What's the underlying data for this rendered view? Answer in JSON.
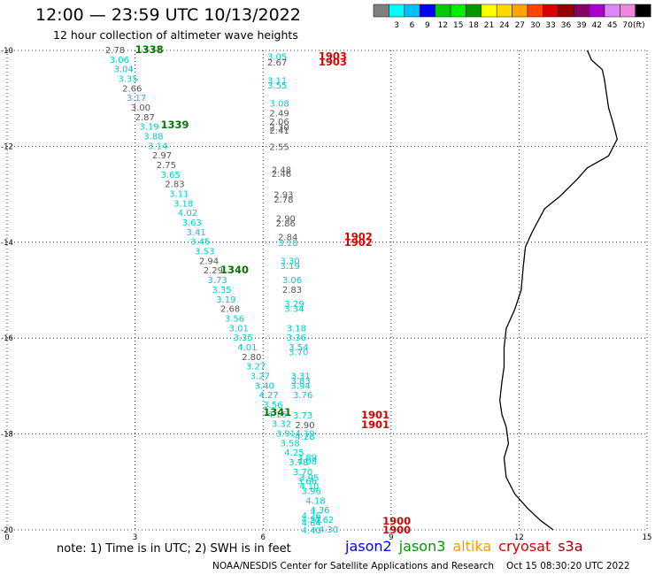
{
  "header": {
    "title": "12:00 — 23:59 UTC 10/13/2022",
    "subtitle": "12 hour collection of altimeter wave heights"
  },
  "colorbar": {
    "labels": [
      "3",
      "6",
      "9",
      "12",
      "15",
      "18",
      "21",
      "24",
      "27",
      "30",
      "33",
      "36",
      "39",
      "42",
      "45",
      "70"
    ],
    "unit": "(ft)",
    "colors": [
      "#808080",
      "#00ffff",
      "#00bfff",
      "#0000ff",
      "#00cc00",
      "#00ee00",
      "#009900",
      "#ffff00",
      "#ffd700",
      "#ffa500",
      "#ff4400",
      "#dd0000",
      "#990000",
      "#880066",
      "#aa00cc",
      "#dd88ff",
      "#ee88dd",
      "#000000"
    ]
  },
  "axes": {
    "y_ticks": [
      "-10",
      "-12",
      "-14",
      "-16",
      "-18",
      "-20"
    ],
    "x_ticks": [
      "0",
      "3",
      "6",
      "9",
      "12",
      "15"
    ]
  },
  "passes": [
    {
      "label": "1338",
      "color": "#007700",
      "x": 3.0,
      "y": -9.98
    },
    {
      "label": "1339",
      "color": "#007700",
      "x": 3.6,
      "y": -11.55
    },
    {
      "label": "1340",
      "color": "#007700",
      "x": 5.0,
      "y": -14.58
    },
    {
      "label": "1341",
      "color": "#007700",
      "x": 6.0,
      "y": -17.55
    },
    {
      "label": "1903",
      "color": "#dd0000",
      "x": 7.3,
      "y": -10.12
    },
    {
      "label": "1903",
      "color": "#dd0000",
      "x": 7.3,
      "y": -10.24
    },
    {
      "label": "1902",
      "color": "#dd0000",
      "x": 7.9,
      "y": -13.88
    },
    {
      "label": "1902",
      "color": "#dd0000",
      "x": 7.9,
      "y": -14.0
    },
    {
      "label": "1901",
      "color": "#dd0000",
      "x": 8.3,
      "y": -17.6
    },
    {
      "label": "1901",
      "color": "#dd0000",
      "x": 8.3,
      "y": -17.8
    },
    {
      "label": "1900",
      "color": "#dd0000",
      "x": 8.8,
      "y": -19.82
    },
    {
      "label": "1900",
      "color": "#dd0000",
      "x": 8.8,
      "y": -20.0
    }
  ],
  "observations": [
    {
      "v": "2.78",
      "c": "#555555",
      "x": 2.3,
      "y": -9.98
    },
    {
      "v": "3.06",
      "c": "#00cccc",
      "x": 2.4,
      "y": -10.18
    },
    {
      "v": "3.04",
      "c": "#00cccc",
      "x": 2.5,
      "y": -10.38
    },
    {
      "v": "3.35",
      "c": "#00cccc",
      "x": 2.6,
      "y": -10.58
    },
    {
      "v": "2.66",
      "c": "#555555",
      "x": 2.7,
      "y": -10.78
    },
    {
      "v": "3.17",
      "c": "#00cccc",
      "x": 2.8,
      "y": -10.98
    },
    {
      "v": "3.00",
      "c": "#555555",
      "x": 2.9,
      "y": -11.18
    },
    {
      "v": "2.87",
      "c": "#555555",
      "x": 3.0,
      "y": -11.38
    },
    {
      "v": "3.19",
      "c": "#00cccc",
      "x": 3.1,
      "y": -11.58
    },
    {
      "v": "3.88",
      "c": "#00cccc",
      "x": 3.2,
      "y": -11.78
    },
    {
      "v": "3.14",
      "c": "#00cccc",
      "x": 3.3,
      "y": -11.98
    },
    {
      "v": "2.97",
      "c": "#555555",
      "x": 3.4,
      "y": -12.18
    },
    {
      "v": "2.75",
      "c": "#555555",
      "x": 3.5,
      "y": -12.38
    },
    {
      "v": "3.65",
      "c": "#00cccc",
      "x": 3.6,
      "y": -12.58
    },
    {
      "v": "2.83",
      "c": "#555555",
      "x": 3.7,
      "y": -12.78
    },
    {
      "v": "3.11",
      "c": "#00cccc",
      "x": 3.8,
      "y": -12.98
    },
    {
      "v": "3.18",
      "c": "#00cccc",
      "x": 3.9,
      "y": -13.18
    },
    {
      "v": "4.02",
      "c": "#00cccc",
      "x": 4.0,
      "y": -13.38
    },
    {
      "v": "3.63",
      "c": "#00cccc",
      "x": 4.1,
      "y": -13.58
    },
    {
      "v": "3.41",
      "c": "#00cccc",
      "x": 4.2,
      "y": -13.78
    },
    {
      "v": "3.45",
      "c": "#00cccc",
      "x": 4.3,
      "y": -13.98
    },
    {
      "v": "3.53",
      "c": "#00cccc",
      "x": 4.4,
      "y": -14.18
    },
    {
      "v": "2.94",
      "c": "#555555",
      "x": 4.5,
      "y": -14.38
    },
    {
      "v": "2.29",
      "c": "#555555",
      "x": 4.6,
      "y": -14.58
    },
    {
      "v": "3.73",
      "c": "#00cccc",
      "x": 4.7,
      "y": -14.78
    },
    {
      "v": "3.35",
      "c": "#00cccc",
      "x": 4.8,
      "y": -14.98
    },
    {
      "v": "3.19",
      "c": "#00cccc",
      "x": 4.9,
      "y": -15.18
    },
    {
      "v": "2.68",
      "c": "#555555",
      "x": 5.0,
      "y": -15.38
    },
    {
      "v": "3.56",
      "c": "#00cccc",
      "x": 5.1,
      "y": -15.58
    },
    {
      "v": "3.01",
      "c": "#00cccc",
      "x": 5.2,
      "y": -15.78
    },
    {
      "v": "3.35",
      "c": "#00cccc",
      "x": 5.3,
      "y": -15.98
    },
    {
      "v": "4.01",
      "c": "#00cccc",
      "x": 5.4,
      "y": -16.18
    },
    {
      "v": "2.80",
      "c": "#555555",
      "x": 5.5,
      "y": -16.38
    },
    {
      "v": "3.27",
      "c": "#00cccc",
      "x": 5.6,
      "y": -16.58
    },
    {
      "v": "3.27",
      "c": "#00cccc",
      "x": 5.7,
      "y": -16.78
    },
    {
      "v": "3.40",
      "c": "#00cccc",
      "x": 5.8,
      "y": -16.98
    },
    {
      "v": "4.27",
      "c": "#00cccc",
      "x": 5.9,
      "y": -17.18
    },
    {
      "v": "3.56",
      "c": "#00cccc",
      "x": 6.0,
      "y": -17.38
    },
    {
      "v": "4.16",
      "c": "#00cccc",
      "x": 6.1,
      "y": -17.58
    },
    {
      "v": "3.32",
      "c": "#00cccc",
      "x": 6.2,
      "y": -17.78
    },
    {
      "v": "3.91",
      "c": "#00cccc",
      "x": 6.3,
      "y": -17.98
    },
    {
      "v": "3.58",
      "c": "#00cccc",
      "x": 6.4,
      "y": -18.18
    },
    {
      "v": "4.25",
      "c": "#00cccc",
      "x": 6.5,
      "y": -18.38
    },
    {
      "v": "3.78",
      "c": "#00cccc",
      "x": 6.6,
      "y": -18.58
    },
    {
      "v": "3.70",
      "c": "#00cccc",
      "x": 6.7,
      "y": -18.78
    },
    {
      "v": "3.66",
      "c": "#00cccc",
      "x": 6.8,
      "y": -18.98
    },
    {
      "v": "3.96",
      "c": "#00cccc",
      "x": 6.9,
      "y": -19.18
    },
    {
      "v": "4.18",
      "c": "#00cccc",
      "x": 7.0,
      "y": -19.38
    },
    {
      "v": "4.36",
      "c": "#00cccc",
      "x": 7.1,
      "y": -19.58
    },
    {
      "v": "4.62",
      "c": "#00cccc",
      "x": 7.2,
      "y": -19.78
    },
    {
      "v": "4.30",
      "c": "#00cccc",
      "x": 7.3,
      "y": -19.98
    },
    {
      "v": "3.05",
      "c": "#00cccc",
      "x": 6.1,
      "y": -10.12
    },
    {
      "v": "2.67",
      "c": "#555555",
      "x": 6.1,
      "y": -10.24
    },
    {
      "v": "3.11",
      "c": "#00cccc",
      "x": 6.1,
      "y": -10.62
    },
    {
      "v": "3.55",
      "c": "#00cccc",
      "x": 6.1,
      "y": -10.72
    },
    {
      "v": "3.08",
      "c": "#00cccc",
      "x": 6.15,
      "y": -11.1
    },
    {
      "v": "2.49",
      "c": "#555555",
      "x": 6.15,
      "y": -11.3
    },
    {
      "v": "2.06",
      "c": "#555555",
      "x": 6.15,
      "y": -11.48
    },
    {
      "v": "2.30",
      "c": "#555555",
      "x": 6.15,
      "y": -11.6
    },
    {
      "v": "2.41",
      "c": "#555555",
      "x": 6.15,
      "y": -11.66
    },
    {
      "v": "2.55",
      "c": "#555555",
      "x": 6.15,
      "y": -12.0
    },
    {
      "v": "2.48",
      "c": "#555555",
      "x": 6.2,
      "y": -12.48
    },
    {
      "v": "2.46",
      "c": "#555555",
      "x": 6.2,
      "y": -12.56
    },
    {
      "v": "2.93",
      "c": "#555555",
      "x": 6.25,
      "y": -13.0
    },
    {
      "v": "2.78",
      "c": "#555555",
      "x": 6.25,
      "y": -13.1
    },
    {
      "v": "2.90",
      "c": "#555555",
      "x": 6.3,
      "y": -13.5
    },
    {
      "v": "2.86",
      "c": "#555555",
      "x": 6.3,
      "y": -13.6
    },
    {
      "v": "2.84",
      "c": "#555555",
      "x": 6.35,
      "y": -13.88
    },
    {
      "v": "3.18",
      "c": "#00cccc",
      "x": 6.35,
      "y": -14.0
    },
    {
      "v": "3.30",
      "c": "#00cccc",
      "x": 6.4,
      "y": -14.38
    },
    {
      "v": "3.19",
      "c": "#00cccc",
      "x": 6.4,
      "y": -14.48
    },
    {
      "v": "3.06",
      "c": "#00cccc",
      "x": 6.45,
      "y": -14.78
    },
    {
      "v": "2.83",
      "c": "#555555",
      "x": 6.45,
      "y": -14.98
    },
    {
      "v": "3.29",
      "c": "#00cccc",
      "x": 6.5,
      "y": -15.28
    },
    {
      "v": "3.34",
      "c": "#00cccc",
      "x": 6.5,
      "y": -15.38
    },
    {
      "v": "3.18",
      "c": "#00cccc",
      "x": 6.55,
      "y": -15.78
    },
    {
      "v": "3.36",
      "c": "#00cccc",
      "x": 6.55,
      "y": -15.98
    },
    {
      "v": "3.54",
      "c": "#00cccc",
      "x": 6.6,
      "y": -16.18
    },
    {
      "v": "3.70",
      "c": "#00cccc",
      "x": 6.6,
      "y": -16.28
    },
    {
      "v": "3.31",
      "c": "#00cccc",
      "x": 6.65,
      "y": -16.78
    },
    {
      "v": "3.83",
      "c": "#00cccc",
      "x": 6.65,
      "y": -16.88
    },
    {
      "v": "3.94",
      "c": "#00cccc",
      "x": 6.65,
      "y": -16.98
    },
    {
      "v": "3.76",
      "c": "#00cccc",
      "x": 6.7,
      "y": -17.18
    },
    {
      "v": "3.73",
      "c": "#00cccc",
      "x": 6.7,
      "y": -17.6
    },
    {
      "v": "2.90",
      "c": "#555555",
      "x": 6.75,
      "y": -17.8
    },
    {
      "v": "4.19",
      "c": "#00cccc",
      "x": 6.75,
      "y": -17.98
    },
    {
      "v": "4.28",
      "c": "#00cccc",
      "x": 6.75,
      "y": -18.04
    },
    {
      "v": "3.89",
      "c": "#00cccc",
      "x": 6.8,
      "y": -18.48
    },
    {
      "v": "4.08",
      "c": "#00cccc",
      "x": 6.8,
      "y": -18.56
    },
    {
      "v": "3.95",
      "c": "#00cccc",
      "x": 6.85,
      "y": -18.9
    },
    {
      "v": "4.10",
      "c": "#00cccc",
      "x": 6.85,
      "y": -19.08
    },
    {
      "v": "4.26",
      "c": "#00cccc",
      "x": 6.9,
      "y": -19.7
    },
    {
      "v": "4.32",
      "c": "#00cccc",
      "x": 6.9,
      "y": -19.78
    },
    {
      "v": "4.64",
      "c": "#00cccc",
      "x": 6.9,
      "y": -19.84
    },
    {
      "v": "4.40",
      "c": "#00cccc",
      "x": 6.9,
      "y": -20.0
    }
  ],
  "coastline": [
    [
      13.6,
      -10.0
    ],
    [
      13.7,
      -10.2
    ],
    [
      13.95,
      -10.4
    ],
    [
      14.0,
      -10.6
    ],
    [
      14.05,
      -10.9
    ],
    [
      14.1,
      -11.2
    ],
    [
      14.2,
      -11.5
    ],
    [
      14.3,
      -11.85
    ],
    [
      14.1,
      -12.2
    ],
    [
      13.6,
      -12.45
    ],
    [
      13.35,
      -12.7
    ],
    [
      12.95,
      -13.05
    ],
    [
      12.6,
      -13.3
    ],
    [
      12.3,
      -13.8
    ],
    [
      12.15,
      -14.1
    ],
    [
      12.1,
      -14.5
    ],
    [
      12.05,
      -15.0
    ],
    [
      11.9,
      -15.4
    ],
    [
      11.7,
      -15.8
    ],
    [
      11.65,
      -16.2
    ],
    [
      11.65,
      -16.6
    ],
    [
      11.6,
      -16.9
    ],
    [
      11.55,
      -17.3
    ],
    [
      11.6,
      -17.6
    ],
    [
      11.7,
      -17.85
    ],
    [
      11.75,
      -18.2
    ],
    [
      11.65,
      -18.5
    ],
    [
      11.7,
      -18.9
    ],
    [
      11.9,
      -19.25
    ],
    [
      12.2,
      -19.55
    ],
    [
      12.5,
      -19.8
    ],
    [
      12.8,
      -20.0
    ]
  ],
  "footer": {
    "note": "note:  1) Time is in UTC;  2) SWH is in feet",
    "satellites": [
      {
        "name": "jason2",
        "color": "#0000ff"
      },
      {
        "name": "jason3",
        "color": "#009900"
      },
      {
        "name": "altika",
        "color": "#ff9900"
      },
      {
        "name": "cryosat",
        "color": "#dd0000"
      },
      {
        "name": "s3a",
        "color": "#990000"
      }
    ],
    "credit": "NOAA/NESDIS Center for Satellite Applications and Research",
    "timestamp": "Oct 15 08:30:20 UTC 2022"
  }
}
